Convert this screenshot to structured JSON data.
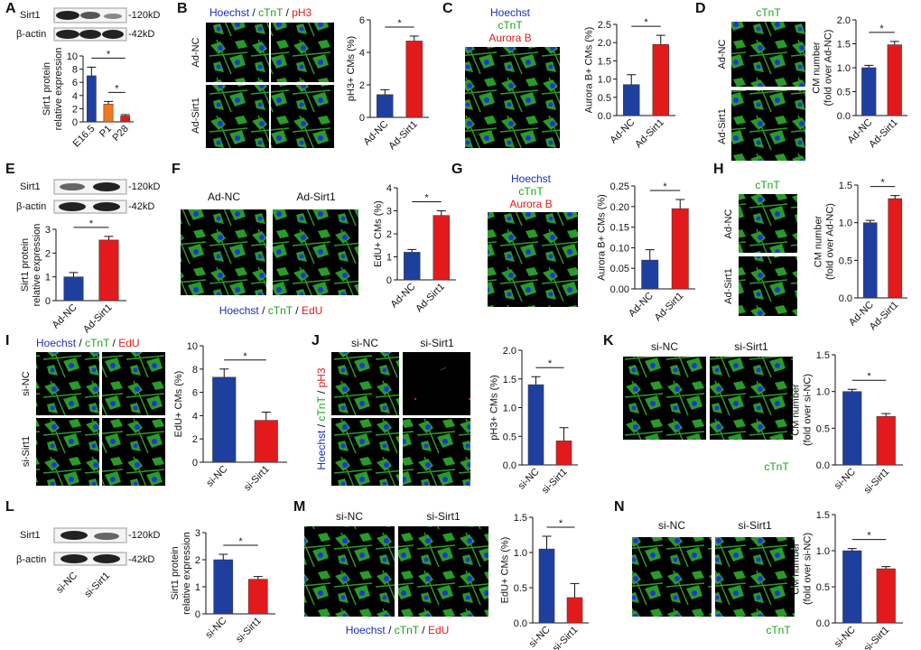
{
  "panels": [
    {
      "letter": "A",
      "bands": [
        "Sirt1",
        "β-actin"
      ],
      "sizes": [
        "-120kD",
        "-42kD"
      ]
    },
    {
      "letter": "B",
      "stain": [
        "Hoechst",
        "/",
        "cTnT",
        "/",
        "pH3"
      ],
      "rows": [
        "Ad-NC",
        "Ad-Sirt1"
      ]
    },
    {
      "letter": "C",
      "stain": [
        "Hoechst",
        "cTnT",
        "Aurora B"
      ]
    },
    {
      "letter": "D",
      "stain": [
        "cTnT"
      ],
      "rows": [
        "Ad-NC",
        "Ad-Sirt1"
      ]
    },
    {
      "letter": "E",
      "bands": [
        "Sirt1",
        "β-actin"
      ],
      "sizes": [
        "-120kD",
        "-42kD"
      ]
    },
    {
      "letter": "F",
      "cols": [
        "Ad-NC",
        "Ad-Sirt1"
      ],
      "stain": [
        "Hoechst",
        "/",
        "cTnT",
        "/",
        "EdU"
      ]
    },
    {
      "letter": "G",
      "stain": [
        "Hoechst",
        "cTnT",
        "Aurora B"
      ]
    },
    {
      "letter": "H",
      "stain": [
        "cTnT"
      ],
      "rows": [
        "Ad-NC",
        "Ad-Sirt1"
      ]
    },
    {
      "letter": "I",
      "stain": [
        "Hoechst",
        "/",
        "cTnT",
        "/",
        "EdU"
      ],
      "rows": [
        "si-NC",
        "si-Sirt1"
      ]
    },
    {
      "letter": "J",
      "cols": [
        "si-NC",
        "si-Sirt1"
      ],
      "stain": [
        "Hoechst",
        "/",
        "cTnT",
        "/",
        "pH3"
      ]
    },
    {
      "letter": "K",
      "cols": [
        "si-NC",
        "si-Sirt1"
      ],
      "stain": [
        "cTnT"
      ]
    },
    {
      "letter": "L",
      "bands": [
        "Sirt1",
        "β-actin"
      ],
      "sizes": [
        "-120kD",
        "-42kD"
      ],
      "lanes": [
        "si-NC",
        "si-Sirt1"
      ]
    },
    {
      "letter": "M",
      "cols": [
        "si-NC",
        "si-Sirt1"
      ],
      "stain": [
        "Hoechst",
        "/",
        "cTnT",
        "/",
        "EdU"
      ]
    },
    {
      "letter": "N",
      "cols": [
        "si-NC",
        "si-Sirt1"
      ],
      "stain": [
        "cTnT"
      ]
    }
  ],
  "chart_data": [
    {
      "type": "bar",
      "ylabel": [
        "Sirt1 protein",
        "relative expression"
      ],
      "categories": [
        "E16.5",
        "P1",
        "P28"
      ],
      "values": [
        7.0,
        2.7,
        0.9
      ],
      "errors": [
        1.3,
        0.4,
        0.2
      ],
      "colors": [
        "#1f3f9f",
        "#f07820",
        "#e31a1c"
      ],
      "ylim": [
        0,
        10
      ],
      "yticks": [
        0,
        2,
        4,
        6,
        8,
        10
      ],
      "annotations": [
        "*",
        "*"
      ]
    },
    {
      "type": "bar",
      "ylabel": [
        "pH3+ CMs (%)"
      ],
      "categories": [
        "Ad-NC",
        "Ad-Sirt1"
      ],
      "values": [
        1.4,
        4.7
      ],
      "errors": [
        0.3,
        0.3
      ],
      "colors": [
        "#1f3f9f",
        "#e31a1c"
      ],
      "ylim": [
        0,
        6
      ],
      "yticks": [
        0,
        2,
        4,
        6
      ],
      "annotations": [
        "*"
      ]
    },
    {
      "type": "bar",
      "ylabel": [
        "Aurora B+ CMs (%)"
      ],
      "categories": [
        "Ad-NC",
        "Ad-Sirt1"
      ],
      "values": [
        0.85,
        1.95
      ],
      "errors": [
        0.27,
        0.25
      ],
      "colors": [
        "#1f3f9f",
        "#e31a1c"
      ],
      "ylim": [
        0,
        2.5
      ],
      "yticks": [
        {
          "value": 0,
          "label": "0.0"
        },
        0.5,
        {
          "value": 1,
          "label": "1.0"
        },
        1.5,
        {
          "value": 2,
          "label": "2.0"
        },
        2.5
      ],
      "annotations": [
        "*"
      ]
    },
    {
      "type": "bar",
      "ylabel": [
        "CM number",
        "(fold over Ad-NC)"
      ],
      "categories": [
        "Ad-NC",
        "Ad-Sirt1"
      ],
      "values": [
        1.0,
        1.48
      ],
      "errors": [
        0.05,
        0.07
      ],
      "colors": [
        "#1f3f9f",
        "#e31a1c"
      ],
      "ylim": [
        0,
        2
      ],
      "yticks": [
        {
          "value": 0,
          "label": "0.0"
        },
        0.5,
        {
          "value": 1,
          "label": "1.0"
        },
        1.5,
        {
          "value": 2,
          "label": "2.0"
        }
      ],
      "annotations": [
        "*"
      ]
    },
    {
      "type": "bar",
      "ylabel": [
        "Sirt1 protein",
        "relative expression"
      ],
      "categories": [
        "Ad-NC",
        "Ad-Sirt1"
      ],
      "values": [
        1.0,
        2.55
      ],
      "errors": [
        0.18,
        0.15
      ],
      "colors": [
        "#1f3f9f",
        "#e31a1c"
      ],
      "ylim": [
        0,
        3
      ],
      "yticks": [
        0,
        1,
        2,
        3
      ],
      "annotations": [
        "*"
      ]
    },
    {
      "type": "bar",
      "ylabel": [
        "EdU+ CMs (%)"
      ],
      "categories": [
        "Ad-NC",
        "Ad-Sirt1"
      ],
      "values": [
        1.2,
        2.8
      ],
      "errors": [
        0.12,
        0.2
      ],
      "colors": [
        "#1f3f9f",
        "#e31a1c"
      ],
      "ylim": [
        0,
        4
      ],
      "yticks": [
        0,
        1,
        2,
        3,
        4
      ],
      "annotations": [
        "*"
      ]
    },
    {
      "type": "bar",
      "ylabel": [
        "Aurora B+ CMs (%)"
      ],
      "categories": [
        "Ad-NC",
        "Ad-Sirt1"
      ],
      "values": [
        0.07,
        0.195
      ],
      "errors": [
        0.025,
        0.022
      ],
      "colors": [
        "#1f3f9f",
        "#e31a1c"
      ],
      "ylim": [
        0,
        0.25
      ],
      "yticks": [
        {
          "value": 0,
          "label": "0.00"
        },
        0.05,
        {
          "value": 0.1,
          "label": "0.10"
        },
        0.15,
        {
          "value": 0.2,
          "label": "0.20"
        },
        0.25
      ],
      "annotations": [
        "*"
      ]
    },
    {
      "type": "bar",
      "ylabel": [
        "CM number",
        "(fold over Ad-NC)"
      ],
      "categories": [
        "Ad-NC",
        "Ad-Sirt1"
      ],
      "values": [
        1.0,
        1.32
      ],
      "errors": [
        0.03,
        0.04
      ],
      "colors": [
        "#1f3f9f",
        "#e31a1c"
      ],
      "ylim": [
        0,
        1.5
      ],
      "yticks": [
        {
          "value": 0,
          "label": "0.0"
        },
        0.5,
        {
          "value": 1,
          "label": "1.0"
        },
        1.5
      ],
      "annotations": [
        "*"
      ]
    },
    {
      "type": "bar",
      "ylabel": [
        "EdU+ CMs (%)"
      ],
      "categories": [
        "si-NC",
        "si-Sirt1"
      ],
      "values": [
        7.3,
        3.6
      ],
      "errors": [
        0.7,
        0.7
      ],
      "colors": [
        "#1f3f9f",
        "#e31a1c"
      ],
      "ylim": [
        0,
        10
      ],
      "yticks": [
        0,
        2,
        4,
        6,
        8,
        10
      ],
      "annotations": [
        "*"
      ]
    },
    {
      "type": "bar",
      "ylabel": [
        "pH3+ CMs (%)"
      ],
      "categories": [
        "si-NC",
        "si-Sirt1"
      ],
      "values": [
        1.4,
        0.42
      ],
      "errors": [
        0.14,
        0.23
      ],
      "colors": [
        "#1f3f9f",
        "#e31a1c"
      ],
      "ylim": [
        0,
        2
      ],
      "yticks": [
        {
          "value": 0,
          "label": "0.0"
        },
        0.5,
        {
          "value": 1,
          "label": "1.0"
        },
        1.5,
        {
          "value": 2,
          "label": "2.0"
        }
      ],
      "annotations": [
        "*"
      ]
    },
    {
      "type": "bar",
      "ylabel": [
        "CM number",
        "(fold over si-NC)"
      ],
      "categories": [
        "si-NC",
        "si-Sirt1"
      ],
      "values": [
        1.0,
        0.66
      ],
      "errors": [
        0.03,
        0.04
      ],
      "colors": [
        "#1f3f9f",
        "#e31a1c"
      ],
      "ylim": [
        0,
        1.5
      ],
      "yticks": [
        {
          "value": 0,
          "label": "0.0"
        },
        0.5,
        {
          "value": 1,
          "label": "1.0"
        },
        1.5
      ],
      "annotations": [
        "*"
      ]
    },
    {
      "type": "bar",
      "ylabel": [
        "Sirt1 protein",
        "relative expression"
      ],
      "categories": [
        "si-NC",
        "si-Sirt1"
      ],
      "values": [
        2.0,
        1.28
      ],
      "errors": [
        0.2,
        0.1
      ],
      "colors": [
        "#1f3f9f",
        "#e31a1c"
      ],
      "ylim": [
        0,
        3
      ],
      "yticks": [
        0,
        1,
        2,
        3
      ],
      "annotations": [
        "*"
      ]
    },
    {
      "type": "bar",
      "ylabel": [
        "EdU+ CMs (%)"
      ],
      "categories": [
        "si-NC",
        "si-Sirt1"
      ],
      "values": [
        1.05,
        0.36
      ],
      "errors": [
        0.18,
        0.2
      ],
      "colors": [
        "#1f3f9f",
        "#e31a1c"
      ],
      "ylim": [
        0,
        1.5
      ],
      "yticks": [
        {
          "value": 0,
          "label": "0.0"
        },
        0.5,
        {
          "value": 1,
          "label": "1.0"
        },
        1.5
      ],
      "annotations": [
        "*"
      ]
    },
    {
      "type": "bar",
      "ylabel": [
        "CM number",
        "(fold over si-NC)"
      ],
      "categories": [
        "si-NC",
        "si-Sirt1"
      ],
      "values": [
        1.0,
        0.75
      ],
      "errors": [
        0.03,
        0.03
      ],
      "colors": [
        "#1f3f9f",
        "#e31a1c"
      ],
      "ylim": [
        0,
        1.5
      ],
      "yticks": [
        {
          "value": 0,
          "label": "0.0"
        },
        0.5,
        {
          "value": 1,
          "label": "1.0"
        },
        1.5
      ],
      "annotations": [
        "*"
      ]
    }
  ]
}
